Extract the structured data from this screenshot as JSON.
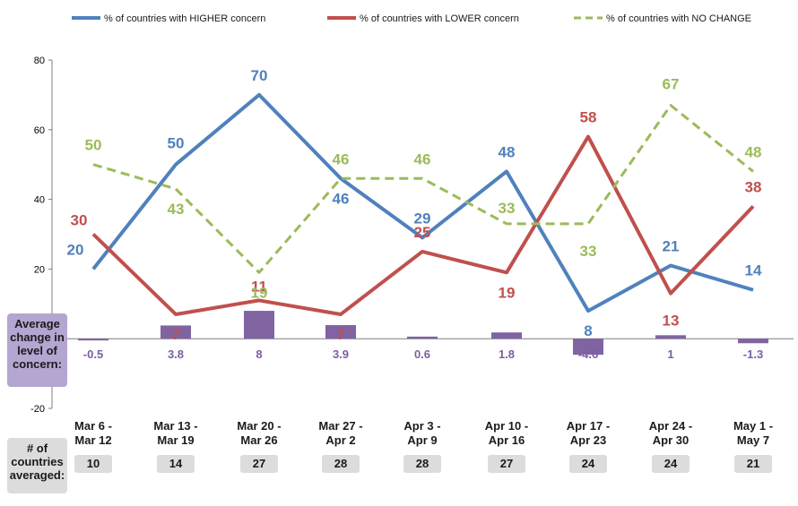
{
  "chart_data": {
    "type": "line",
    "categories": [
      "Mar 6 -\nMar 12",
      "Mar 13 -\nMar 19",
      "Mar 20 -\nMar 26",
      "Mar 27 -\nApr 2",
      "Apr 3 -\nApr 9",
      "Apr 10 -\nApr 16",
      "Apr 17 -\nApr 23",
      "Apr 24 -\nApr 30",
      "May 1 -\nMay 7"
    ],
    "series": [
      {
        "name": "% of countries with HIGHER concern",
        "type": "line",
        "color": "#4f81bd",
        "values": [
          20,
          50,
          70,
          46,
          29,
          48,
          8,
          21,
          14
        ]
      },
      {
        "name": "% of countries with LOWER concern",
        "type": "line",
        "color": "#c0504d",
        "values": [
          30,
          7,
          11,
          7,
          25,
          19,
          58,
          13,
          38
        ]
      },
      {
        "name": "% of countries with NO CHANGE",
        "type": "line",
        "dashed": true,
        "color": "#9bbb59",
        "values": [
          50,
          43,
          19,
          46,
          46,
          33,
          33,
          67,
          48
        ]
      },
      {
        "name": "Average change in level of concern",
        "type": "bar",
        "color": "#8064a2",
        "values": [
          -0.5,
          3.8,
          8,
          3.9,
          0.6,
          1.8,
          -4.6,
          1,
          -1.3
        ]
      }
    ],
    "ylim": [
      -20,
      80
    ],
    "yticks": [
      -20,
      20,
      40,
      60,
      80
    ],
    "grid": false,
    "legend_position": "top"
  },
  "side_label": "Average\nchange in\nlevel of\nconcern:",
  "count_label": "# of\ncountries\naveraged:",
  "counts": [
    10,
    14,
    27,
    28,
    28,
    27,
    24,
    24,
    21
  ]
}
